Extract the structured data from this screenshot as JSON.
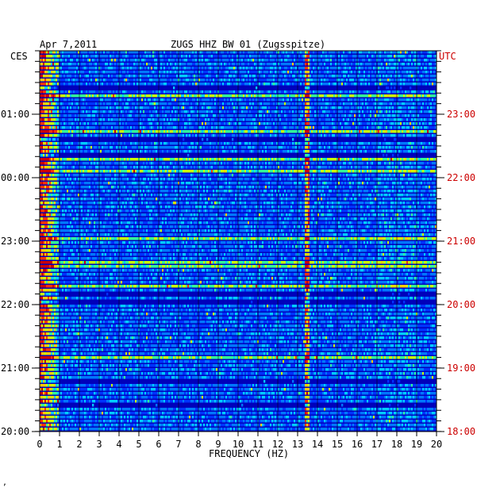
{
  "header": {
    "date": "Apr 7,2011",
    "station": "ZUGS HHZ BW 01 (Zugsspitze)",
    "left_tz": "CES",
    "right_tz": "UTC"
  },
  "footer": {
    "mark": "‚"
  },
  "chart_data": {
    "type": "heatmap",
    "title": "ZUGS HHZ BW 01 (Zugsspitze)",
    "xlabel": "FREQUENCY (HZ)",
    "ylabel": "",
    "xlim": [
      0,
      20
    ],
    "x_ticks": [
      "0",
      "1",
      "2",
      "3",
      "4",
      "5",
      "6",
      "7",
      "8",
      "9",
      "10",
      "11",
      "12",
      "13",
      "14",
      "15",
      "16",
      "17",
      "18",
      "19",
      "20"
    ],
    "left_y_ticks": [
      "01:00",
      "00:00",
      "23:00",
      "22:00",
      "21:00",
      "20:00"
    ],
    "right_y_ticks": [
      "23:00",
      "22:00",
      "21:00",
      "20:00",
      "19:00",
      "18:00"
    ],
    "grid": true,
    "colormap": [
      "#000088",
      "#0000cc",
      "#0033ff",
      "#0077ff",
      "#00ccff",
      "#33ff99",
      "#ccff00",
      "#ffcc00",
      "#ff3300",
      "#cc0000"
    ],
    "background_color": "#0000bb",
    "features": [
      {
        "description": "low-frequency energy",
        "freq_range": [
          0,
          1
        ]
      },
      {
        "description": "persistent narrow band",
        "freq": 13.5
      },
      {
        "description": "broad band activity",
        "freq_range": [
          17,
          19
        ]
      }
    ]
  }
}
